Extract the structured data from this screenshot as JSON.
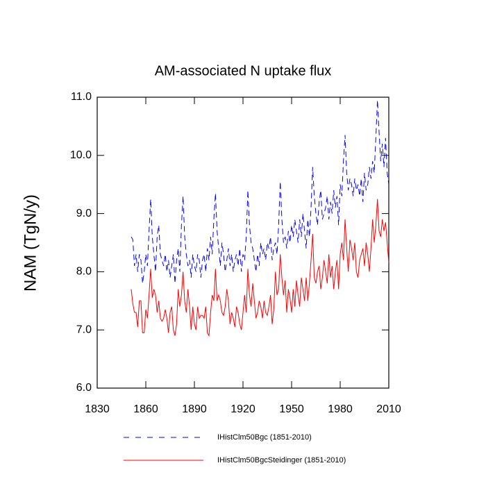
{
  "chart_data": {
    "type": "line",
    "title": "AM-associated N uptake flux",
    "y_label": "NAM  (TgN/y)",
    "x": [
      1851,
      1852,
      1853,
      1854,
      1855,
      1856,
      1857,
      1858,
      1859,
      1860,
      1861,
      1862,
      1863,
      1864,
      1865,
      1866,
      1867,
      1868,
      1869,
      1870,
      1871,
      1872,
      1873,
      1874,
      1875,
      1876,
      1877,
      1878,
      1879,
      1880,
      1881,
      1882,
      1883,
      1884,
      1885,
      1886,
      1887,
      1888,
      1889,
      1890,
      1891,
      1892,
      1893,
      1894,
      1895,
      1896,
      1897,
      1898,
      1899,
      1900,
      1901,
      1902,
      1903,
      1904,
      1905,
      1906,
      1907,
      1908,
      1909,
      1910,
      1911,
      1912,
      1913,
      1914,
      1915,
      1916,
      1917,
      1918,
      1919,
      1920,
      1921,
      1922,
      1923,
      1924,
      1925,
      1926,
      1927,
      1928,
      1929,
      1930,
      1931,
      1932,
      1933,
      1934,
      1935,
      1936,
      1937,
      1938,
      1939,
      1940,
      1941,
      1942,
      1943,
      1944,
      1945,
      1946,
      1947,
      1948,
      1949,
      1950,
      1951,
      1952,
      1953,
      1954,
      1955,
      1956,
      1957,
      1958,
      1959,
      1960,
      1961,
      1962,
      1963,
      1964,
      1965,
      1966,
      1967,
      1968,
      1969,
      1970,
      1971,
      1972,
      1973,
      1974,
      1975,
      1976,
      1977,
      1978,
      1979,
      1980,
      1981,
      1982,
      1983,
      1984,
      1985,
      1986,
      1987,
      1988,
      1989,
      1990,
      1991,
      1992,
      1993,
      1994,
      1995,
      1996,
      1997,
      1998,
      1999,
      2000,
      2001,
      2002,
      2003,
      2004,
      2005,
      2006,
      2007,
      2008,
      2009,
      2010
    ],
    "series": [
      {
        "name": "IHistClm50Bgc (1851-2010)",
        "color": "#0000ff",
        "dash": true,
        "values": [
          8.6,
          8.55,
          8.1,
          8.3,
          8.0,
          8.3,
          8.2,
          7.8,
          8.0,
          8.3,
          8.1,
          8.7,
          9.25,
          8.6,
          8.3,
          8.0,
          8.6,
          8.8,
          8.3,
          8.2,
          8.1,
          8.3,
          8.0,
          8.2,
          7.9,
          8.1,
          8.3,
          7.8,
          8.2,
          8.4,
          8.0,
          8.8,
          9.3,
          8.6,
          8.3,
          8.1,
          8.2,
          7.9,
          8.3,
          8.1,
          8.0,
          8.3,
          8.2,
          7.9,
          8.2,
          8.3,
          8.0,
          8.4,
          8.2,
          8.6,
          8.3,
          8.9,
          9.35,
          8.7,
          8.4,
          8.1,
          8.5,
          8.3,
          8.0,
          8.2,
          8.4,
          8.1,
          8.3,
          8.0,
          8.2,
          8.3,
          8.1,
          8.4,
          8.0,
          8.3,
          8.2,
          8.6,
          9.4,
          8.8,
          8.5,
          8.4,
          8.2,
          8.0,
          8.3,
          8.1,
          8.5,
          8.3,
          8.4,
          8.2,
          8.5,
          8.4,
          8.6,
          8.2,
          8.4,
          8.5,
          8.3,
          8.8,
          9.55,
          8.9,
          8.5,
          8.6,
          8.4,
          8.7,
          8.5,
          8.8,
          8.6,
          8.9,
          8.7,
          8.5,
          8.9,
          8.6,
          9.0,
          8.7,
          8.4,
          8.9,
          8.6,
          9.1,
          9.8,
          9.3,
          9.0,
          8.8,
          9.2,
          9.4,
          8.9,
          9.0,
          9.1,
          9.3,
          8.9,
          9.2,
          9.0,
          9.4,
          9.1,
          9.3,
          8.8,
          9.5,
          9.3,
          9.9,
          10.35,
          9.7,
          9.4,
          9.6,
          9.5,
          9.3,
          9.6,
          9.4,
          9.5,
          9.3,
          9.6,
          9.2,
          9.7,
          9.4,
          9.5,
          9.8,
          9.6,
          9.9,
          9.7,
          10.3,
          10.95,
          10.4,
          9.9,
          10.2,
          9.8,
          10.3,
          9.7,
          9.5
        ]
      },
      {
        "name": "IHistClm50BgcSteidinger (1851-2010)",
        "color": "#ff0000",
        "dash": false,
        "values": [
          7.7,
          7.45,
          7.3,
          7.3,
          7.05,
          7.5,
          7.5,
          6.95,
          6.95,
          7.35,
          7.2,
          7.6,
          8.05,
          7.55,
          7.7,
          7.6,
          7.3,
          7.5,
          7.2,
          7.15,
          7.2,
          7.35,
          7.2,
          6.95,
          7.3,
          7.4,
          7.0,
          6.9,
          7.1,
          7.7,
          7.4,
          7.6,
          8.0,
          7.5,
          7.3,
          7.7,
          7.4,
          7.0,
          7.4,
          7.1,
          7.0,
          7.4,
          7.2,
          7.25,
          7.25,
          7.2,
          7.4,
          6.95,
          6.9,
          7.3,
          7.6,
          7.5,
          8.05,
          7.5,
          7.6,
          7.5,
          7.3,
          7.25,
          7.4,
          7.7,
          7.5,
          7.1,
          7.3,
          7.2,
          7.05,
          7.4,
          7.3,
          7.1,
          7.0,
          7.3,
          7.6,
          7.3,
          8.05,
          7.6,
          7.4,
          7.8,
          7.5,
          7.2,
          7.3,
          7.5,
          7.4,
          7.2,
          7.5,
          7.3,
          7.25,
          7.4,
          7.6,
          7.1,
          7.35,
          8.0,
          7.6,
          7.7,
          8.3,
          7.9,
          7.6,
          7.85,
          7.3,
          7.7,
          7.55,
          7.3,
          7.7,
          7.4,
          7.85,
          7.6,
          7.4,
          7.9,
          7.7,
          7.5,
          7.9,
          7.5,
          7.8,
          8.2,
          8.65,
          7.9,
          7.8,
          8.0,
          8.1,
          7.7,
          7.9,
          8.2,
          8.0,
          7.8,
          8.3,
          7.9,
          8.1,
          7.7,
          8.0,
          8.2,
          7.7,
          8.3,
          8.5,
          8.2,
          8.9,
          8.4,
          8.0,
          8.55,
          8.4,
          8.2,
          8.5,
          8.0,
          7.9,
          8.2,
          8.3,
          8.4,
          8.1,
          8.5,
          8.3,
          8.0,
          8.4,
          8.9,
          8.5,
          8.8,
          9.25,
          8.7,
          8.6,
          8.9,
          8.7,
          8.85,
          8.5,
          8.15
        ]
      }
    ],
    "xlim": [
      1830,
      2010
    ],
    "xticks": [
      1830,
      1860,
      1890,
      1920,
      1950,
      1980,
      2010
    ],
    "ylim": [
      6,
      11
    ],
    "yticks": [
      {
        "value": 6,
        "label": "6.0"
      },
      {
        "value": 7,
        "label": "7.0"
      },
      {
        "value": 8,
        "label": "8.0"
      },
      {
        "value": 9,
        "label": "9.0"
      },
      {
        "value": 10,
        "label": "10.0"
      },
      {
        "value": 11,
        "label": "11.0"
      }
    ],
    "legend": "bottom"
  }
}
